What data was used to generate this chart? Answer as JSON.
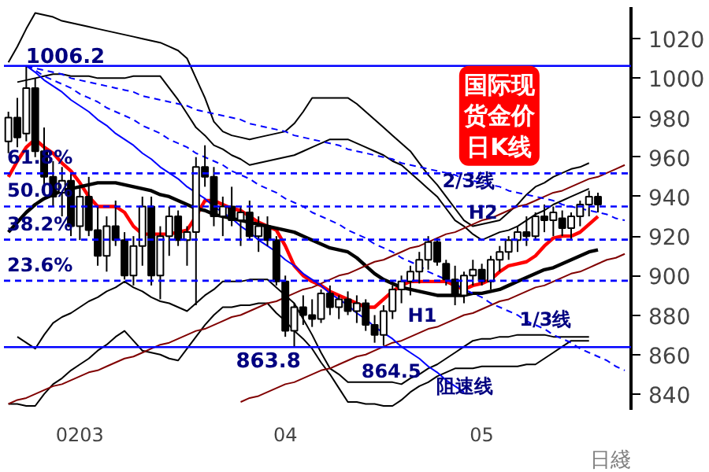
{
  "chart_data": {
    "type": "candlestick",
    "title": "国际现货金价日K线",
    "xlabel": "日綫",
    "categories": [
      null,
      null,
      null,
      null,
      null,
      null,
      null,
      null,
      "0203",
      null,
      null,
      null,
      null,
      null,
      null,
      null,
      null,
      null,
      null,
      null,
      null,
      null,
      null,
      null,
      null,
      null,
      null,
      null,
      null,
      null,
      null,
      "04",
      null,
      null,
      null,
      null,
      null,
      null,
      null,
      null,
      null,
      null,
      null,
      null,
      null,
      null,
      null,
      null,
      null,
      null,
      null,
      null,
      null,
      "05",
      null,
      null,
      null,
      null,
      null,
      null,
      null,
      null,
      null,
      null,
      null,
      null,
      null,
      null,
      null,
      null
    ],
    "ohlc": [
      [
        968,
        983,
        962,
        980
      ],
      [
        980,
        990,
        965,
        970
      ],
      [
        972,
        1006.2,
        968,
        995
      ],
      [
        995,
        1000,
        960,
        963
      ],
      [
        963,
        975,
        945,
        950
      ],
      [
        950,
        958,
        935,
        940
      ],
      [
        942,
        955,
        930,
        948
      ],
      [
        948,
        952,
        920,
        925
      ],
      [
        925,
        945,
        918,
        940
      ],
      [
        940,
        950,
        920,
        923
      ],
      [
        923,
        935,
        905,
        910
      ],
      [
        910,
        930,
        902,
        925
      ],
      [
        925,
        938,
        915,
        918
      ],
      [
        918,
        922,
        898,
        900
      ],
      [
        900,
        920,
        895,
        915
      ],
      [
        915,
        940,
        905,
        935
      ],
      [
        935,
        940,
        895,
        900
      ],
      [
        900,
        925,
        888,
        920
      ],
      [
        920,
        935,
        910,
        930
      ],
      [
        930,
        933,
        915,
        918
      ],
      [
        918,
        925,
        905,
        922
      ],
      [
        922,
        960,
        885,
        955
      ],
      [
        955,
        966,
        945,
        950
      ],
      [
        950,
        955,
        925,
        930
      ],
      [
        930,
        940,
        920,
        935
      ],
      [
        935,
        945,
        925,
        928
      ],
      [
        928,
        935,
        915,
        932
      ],
      [
        932,
        938,
        918,
        920
      ],
      [
        920,
        930,
        912,
        925
      ],
      [
        925,
        930,
        915,
        918
      ],
      [
        918,
        920,
        895,
        897
      ],
      [
        897,
        900,
        869,
        872
      ],
      [
        872,
        886,
        863.8,
        884
      ],
      [
        884,
        890,
        875,
        880
      ],
      [
        880,
        888,
        874,
        878
      ],
      [
        878,
        893,
        876,
        891
      ],
      [
        891,
        895,
        880,
        884
      ],
      [
        884,
        890,
        878,
        888
      ],
      [
        888,
        892,
        880,
        882
      ],
      [
        882,
        890,
        876,
        886
      ],
      [
        886,
        888,
        872,
        875
      ],
      [
        875,
        880,
        866,
        870
      ],
      [
        870,
        885,
        864.5,
        882
      ],
      [
        882,
        895,
        878,
        893
      ],
      [
        893,
        900,
        886,
        897
      ],
      [
        897,
        905,
        890,
        902
      ],
      [
        902,
        912,
        896,
        908
      ],
      [
        908,
        920,
        903,
        917
      ],
      [
        917,
        919,
        905,
        907
      ],
      [
        906,
        908,
        895,
        898
      ],
      [
        898,
        905,
        885,
        890
      ],
      [
        890,
        902,
        886,
        900
      ],
      [
        900,
        908,
        895,
        903
      ],
      [
        903,
        906,
        895,
        897
      ],
      [
        897,
        910,
        893,
        908
      ],
      [
        908,
        915,
        902,
        912
      ],
      [
        912,
        920,
        908,
        918
      ],
      [
        918,
        925,
        912,
        922
      ],
      [
        922,
        930,
        915,
        920
      ],
      [
        920,
        932,
        918,
        930
      ],
      [
        930,
        936,
        922,
        928
      ],
      [
        928,
        935,
        920,
        932
      ],
      [
        929,
        933,
        920,
        924
      ],
      [
        924,
        932,
        918,
        930
      ],
      [
        930,
        938,
        925,
        936
      ],
      [
        936,
        943,
        930,
        940
      ],
      [
        940,
        942,
        932,
        936
      ],
      null,
      null,
      null
    ],
    "series": [
      {
        "type": "line",
        "color": "#ff0000",
        "values": [
          950,
          958,
          965,
          969,
          965,
          962,
          957,
          953,
          947,
          940,
          935,
          935,
          935,
          932,
          925,
          921,
          921,
          921,
          921,
          922,
          923,
          930,
          938,
          938,
          936,
          934,
          933,
          930,
          927,
          925,
          923,
          915,
          905,
          900,
          897,
          895,
          892,
          890,
          888,
          886,
          884,
          884,
          888,
          892,
          895,
          897,
          897,
          897,
          897,
          897,
          895,
          893,
          895,
          896,
          898,
          902,
          905,
          906,
          907,
          910,
          915,
          919,
          920,
          920,
          922,
          926,
          930,
          null,
          null,
          null
        ]
      },
      {
        "type": "line",
        "color": "#000000",
        "values": [
          922,
          927,
          932,
          936,
          939,
          941,
          943,
          944,
          945,
          946,
          947,
          947,
          947,
          946,
          945,
          944,
          943,
          941,
          940,
          938,
          936,
          934,
          933,
          931,
          930,
          929,
          928,
          927,
          926,
          925,
          924,
          923,
          922,
          920,
          918,
          916,
          914,
          913,
          912,
          909,
          905,
          901,
          898,
          896,
          894,
          893,
          892,
          891,
          890,
          890,
          890,
          890,
          891,
          891,
          892,
          893,
          895,
          897,
          899,
          901,
          903,
          904,
          906,
          908,
          910,
          912,
          913,
          null,
          null,
          null
        ]
      },
      {
        "type": "line",
        "color": "#000000",
        "values": [
          1008,
          1016,
          1025,
          1033,
          1032,
          1031,
          1029,
          1028,
          1027,
          1026,
          1025,
          1024,
          1023,
          1022,
          1021,
          1020,
          1019,
          1018,
          1016,
          1014,
          1010,
          1000,
          990,
          978,
          973,
          971,
          970,
          969,
          970,
          971,
          972,
          973,
          977,
          983,
          990,
          990,
          990,
          990,
          990,
          987,
          983,
          979,
          975,
          971,
          967,
          963,
          957,
          951,
          946,
          940,
          934,
          928,
          925,
          926,
          927,
          928,
          932,
          936,
          941,
          945,
          947,
          950,
          952,
          954,
          955,
          957,
          null,
          null,
          null,
          null
        ]
      },
      {
        "type": "line",
        "color": "#000000",
        "values": [
          null,
          998,
          999,
          1000,
          1001,
          1002,
          1002,
          1001,
          1001,
          1001,
          1000,
          1000,
          1000,
          1000,
          1001,
          1001,
          1001,
          1001,
          995,
          989,
          982,
          975,
          971,
          966,
          964,
          961,
          959,
          956,
          957,
          958,
          959,
          960,
          961,
          963,
          965,
          967,
          969,
          969,
          969,
          967,
          965,
          963,
          961,
          958,
          956,
          952,
          948,
          944,
          940,
          934,
          928,
          925,
          921,
          918,
          920,
          922,
          923,
          925,
          928,
          931,
          933,
          936,
          938,
          940,
          942,
          944,
          null,
          null,
          null,
          null
        ]
      },
      {
        "type": "line",
        "color": "#000000",
        "values": [
          null,
          869,
          866,
          863,
          870,
          876,
          879,
          881,
          884,
          887,
          889,
          892,
          894,
          897,
          894,
          892,
          889,
          887,
          886,
          884,
          882,
          886,
          890,
          893,
          897,
          897,
          897,
          898,
          898,
          898,
          894,
          890,
          886,
          878,
          870,
          861,
          853,
          850,
          846,
          846,
          846,
          846,
          846,
          846,
          845,
          848,
          850,
          853,
          855,
          858,
          861,
          864,
          867,
          868,
          868,
          869,
          869,
          870,
          870,
          870,
          870,
          869,
          869,
          869,
          869,
          869,
          null,
          null,
          null,
          null
        ]
      },
      {
        "type": "line",
        "color": "#000000",
        "values": [
          835,
          835,
          834,
          834,
          840,
          845,
          848,
          852,
          855,
          858,
          862,
          865,
          869,
          872,
          867,
          862,
          861,
          860,
          858,
          857,
          863,
          869,
          875,
          880,
          884,
          884,
          885,
          885,
          886,
          886,
          881,
          877,
          872,
          868,
          863,
          856,
          850,
          843,
          836,
          836,
          835,
          835,
          834,
          834,
          837,
          841,
          844,
          846,
          849,
          851,
          853,
          853,
          853,
          854,
          854,
          854,
          854,
          854,
          855,
          855,
          858,
          861,
          864,
          867,
          867,
          867,
          null,
          null,
          null,
          null
        ]
      },
      {
        "type": "line",
        "color": "#800000",
        "values": [
          835,
          837,
          838,
          840,
          842,
          844,
          845,
          847,
          849,
          851,
          852,
          854,
          856,
          858,
          859,
          861,
          863,
          865,
          866,
          868,
          870,
          872,
          873,
          875,
          877,
          879,
          880,
          882,
          884,
          886,
          887,
          889,
          891,
          893,
          894,
          896,
          898,
          900,
          901,
          903,
          905,
          907,
          908,
          910,
          912,
          914,
          915,
          917,
          919,
          921,
          922,
          924,
          926,
          928,
          929,
          931,
          933,
          935,
          936,
          938,
          940,
          942,
          943,
          945,
          947,
          949,
          950,
          952,
          954,
          956
        ]
      },
      {
        "type": "line",
        "color": "#800000",
        "values": [
          null,
          null,
          null,
          null,
          null,
          null,
          null,
          null,
          null,
          null,
          null,
          null,
          null,
          null,
          null,
          null,
          null,
          null,
          null,
          null,
          null,
          null,
          null,
          null,
          null,
          null,
          836,
          838,
          839,
          841,
          843,
          845,
          846,
          848,
          850,
          852,
          853,
          855,
          857,
          859,
          860,
          862,
          864,
          866,
          867,
          869,
          871,
          873,
          874,
          876,
          878,
          880,
          881,
          883,
          885,
          887,
          888,
          890,
          892,
          894,
          895,
          897,
          899,
          901,
          902,
          904,
          906,
          908,
          909,
          911
        ]
      },
      {
        "type": "line",
        "color": "#0000ff",
        "line_style": "dashed",
        "values": [
          null,
          null,
          1006.2,
          1005,
          1004,
          1003,
          1002,
          1000,
          999,
          998,
          997,
          996,
          995,
          994,
          993,
          991,
          990,
          989,
          988,
          987,
          986,
          984,
          983,
          982,
          981,
          980,
          979,
          977,
          976,
          975,
          974,
          973,
          971,
          970,
          969,
          968,
          967,
          966,
          964,
          963,
          962,
          961,
          960,
          959,
          957,
          956,
          955,
          954,
          953,
          952,
          951,
          949,
          948,
          947,
          946,
          945,
          943,
          942,
          941,
          940,
          939,
          938,
          936,
          935,
          934,
          933,
          932,
          931,
          929,
          928
        ]
      },
      {
        "type": "line",
        "color": "#0000ff",
        "line_style": "dashed",
        "values": [
          null,
          null,
          1006.2,
          1004,
          1001,
          999,
          997,
          995,
          992,
          990,
          988,
          985,
          983,
          981,
          979,
          976,
          974,
          972,
          969,
          967,
          965,
          962,
          960,
          958,
          956,
          953,
          951,
          949,
          946,
          944,
          942,
          939,
          937,
          935,
          932,
          930,
          928,
          926,
          923,
          921,
          919,
          916,
          914,
          912,
          909,
          907,
          905,
          902,
          900,
          898,
          896,
          893,
          891,
          889,
          886,
          884,
          882,
          880,
          877,
          875,
          873,
          870,
          868,
          866,
          863,
          861,
          859,
          857,
          854,
          852
        ]
      },
      {
        "type": "line",
        "color": "#0000ff",
        "line_style": "solid",
        "values": [
          null,
          null,
          1006.2,
          1003,
          999,
          996,
          993,
          989,
          986,
          983,
          979,
          976,
          972,
          969,
          966,
          962,
          959,
          955,
          952,
          949,
          945,
          942,
          939,
          935,
          932,
          929,
          925,
          922,
          918,
          915,
          912,
          908,
          905,
          901,
          898,
          895,
          891,
          888,
          885,
          881,
          878,
          874,
          871,
          868,
          864,
          861,
          858,
          854,
          851,
          847,
          844,
          841,
          null,
          null,
          null,
          null,
          null,
          null,
          null,
          null,
          null,
          null,
          null,
          null,
          null,
          null,
          null,
          null,
          null,
          null
        ]
      }
    ],
    "ref_lines": [
      {
        "axis": "y",
        "value": 1006.2,
        "label": "1006.2",
        "color": "#0000ff",
        "line_style": "solid"
      },
      {
        "axis": "y",
        "value": 863.8,
        "label": "863.8",
        "color": "#0000ff",
        "line_style": "solid"
      },
      {
        "axis": "y",
        "value": 951.8,
        "color": "#0000ff",
        "line_style": "dashed"
      },
      {
        "axis": "y",
        "value": 935.0,
        "color": "#0000ff",
        "line_style": "dashed"
      },
      {
        "axis": "y",
        "value": 918.2,
        "color": "#0000ff",
        "line_style": "dashed"
      },
      {
        "axis": "y",
        "value": 897.4,
        "color": "#0000ff",
        "line_style": "dashed"
      }
    ],
    "annotations": [
      {
        "text": "61.8%",
        "y": 951.8
      },
      {
        "text": "50.0%",
        "y": 935.0
      },
      {
        "text": "38.2%",
        "y": 918.2
      },
      {
        "text": "23.6%",
        "y": 897.4
      },
      {
        "text": "864.5",
        "y": 846
      },
      {
        "text": "H1",
        "y": 872
      },
      {
        "text": "H2",
        "y": 924
      },
      "2/3线",
      {
        "text": "1/3线",
        "y": 870
      },
      "阻速线"
    ],
    "ylim": [
      832,
      1036
    ],
    "yticks": [
      840,
      860,
      880,
      900,
      920,
      940,
      960,
      980,
      1000,
      1020
    ]
  }
}
